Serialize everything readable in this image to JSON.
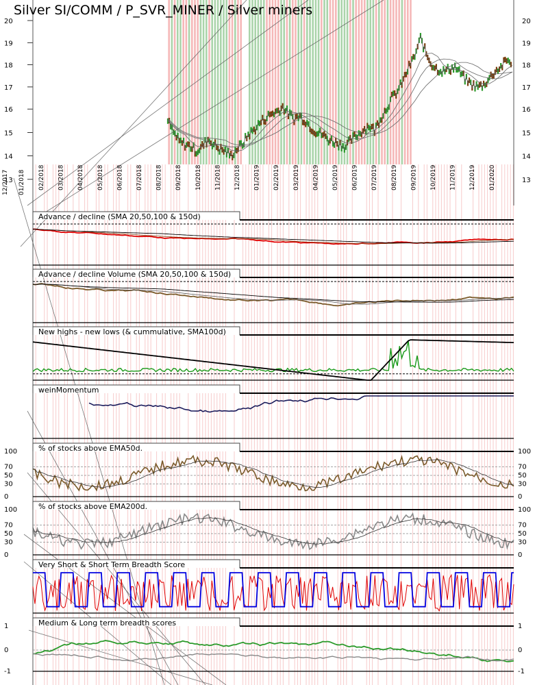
{
  "chart_data": {
    "title": "Silver SI/COMM / P_SVR_MINER / Silver miners",
    "dates": [
      "12/2017",
      "01/2018",
      "02/2018",
      "03/2018",
      "04/2018",
      "05/2018",
      "06/2018",
      "07/2018",
      "08/2018",
      "09/2018",
      "10/2018",
      "11/2018",
      "12/2018",
      "01/2019",
      "02/2019",
      "03/2019",
      "04/2019",
      "05/2019",
      "06/2019",
      "07/2019",
      "08/2019",
      "09/2019",
      "10/2019",
      "11/2019",
      "12/2019",
      "01/2020"
    ],
    "price": {
      "type": "line",
      "yticks": [
        13,
        14,
        15,
        16,
        17,
        18,
        19,
        20
      ],
      "ylim": [
        13.5,
        20.2
      ],
      "start_index": 8.3,
      "series": [
        {
          "name": "price",
          "values": [
            15.5,
            15.0,
            14.6,
            14.5,
            14.4,
            14.2,
            14.4,
            14.7,
            14.5,
            14.3,
            14.2,
            14.0,
            14.3,
            14.5,
            14.9,
            15.1,
            15.4,
            15.6,
            15.8,
            15.9,
            16.1,
            15.8,
            15.6,
            15.7,
            15.5,
            15.2,
            15.0,
            14.9,
            14.7,
            14.6,
            14.5,
            14.4,
            14.7,
            14.9,
            15.1,
            15.3,
            15.1,
            15.6,
            16.0,
            16.5,
            16.8,
            17.3,
            17.9,
            18.4,
            19.2,
            18.5,
            18.0,
            17.8,
            17.7,
            17.8,
            17.9,
            17.6,
            17.3,
            17.1,
            17.0,
            17.1,
            17.4,
            17.7,
            17.9,
            18.2,
            18.1
          ]
        }
      ]
    },
    "panels": [
      {
        "title": "Advance / decline (SMA 20,50,100 & 150d)",
        "yticks": []
      },
      {
        "title": "Advance / decline Volume (SMA 20,50,100 & 150d)",
        "yticks": []
      },
      {
        "title": "New highs - new lows (& cummulative, SMA100d)",
        "yticks": []
      },
      {
        "title": "weinMomentum",
        "yticks": []
      },
      {
        "title": "% of stocks above EMA50d.",
        "yticks": [
          "100",
          "70",
          "50",
          "30",
          "0"
        ]
      },
      {
        "title": "% of stocks above EMA200d.",
        "yticks": [
          "100",
          "70",
          "50",
          "30",
          "0"
        ]
      },
      {
        "title": "Very Short & Short Term Breadth Score",
        "yticks": []
      },
      {
        "title": "Medium & Long term breadth scores",
        "yticks": [
          "1",
          "0",
          "-1"
        ]
      }
    ],
    "colors": {
      "green_band": "#8dc58d",
      "red_band": "#f2a0a0",
      "candle_up": "#2a9a2a",
      "candle_down": "#7a3d0d",
      "ad_line": "#e00000",
      "volume_line": "#7a5a2a",
      "nhnl_line": "#1a9a1a",
      "momentum_line": "#1a1a5a",
      "ema200_line": "#888888",
      "score_red": "#e00000",
      "score_blue": "#0000e0"
    }
  }
}
